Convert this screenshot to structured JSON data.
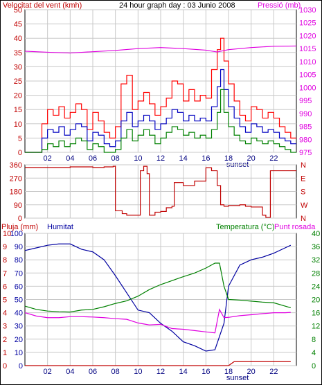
{
  "header": {
    "left": "Velocitat del vent (kmh)",
    "center": "24 hour graph day : 03 Junio 2008",
    "right": "Pressió (mb)"
  },
  "bottom_header": {
    "rain": "Pluja (mm)",
    "humidity": "Humitat",
    "temperature": "Temperatura (°C)",
    "dew": "Punt rosada"
  },
  "colors": {
    "wind_gust": "#ff0000",
    "wind_avg": "#0000c0",
    "wind_low": "#008000",
    "pressure": "#e000e0",
    "direction": "#c00000",
    "humidity": "#0000a0",
    "temperature": "#008000",
    "dew": "#e000e0",
    "rain": "#c00000",
    "grid": "#c8c8c8"
  },
  "x_ticks": [
    "02",
    "04",
    "06",
    "08",
    "10",
    "12",
    "14",
    "16",
    "18",
    "20",
    "22"
  ],
  "sunset_label": "sunset",
  "chart_data": [
    {
      "type": "line",
      "panel": "wind-pressure",
      "x_label_hours": [
        2,
        4,
        6,
        8,
        10,
        12,
        14,
        16,
        18,
        20,
        22
      ],
      "y_left": {
        "label": "Velocitat del vent (kmh)",
        "ticks": [
          0,
          5,
          10,
          15,
          20,
          25,
          30,
          35,
          40,
          45,
          50
        ],
        "ylim": [
          0,
          50
        ]
      },
      "y_right": {
        "label": "Pressió (mb)",
        "ticks": [
          975,
          980,
          985,
          990,
          995,
          1000,
          1005,
          1010,
          1015,
          1020,
          1025,
          1030
        ],
        "ylim": [
          975,
          1030
        ]
      },
      "series": [
        {
          "name": "gust",
          "axis": "left",
          "x": [
            0,
            1,
            1.5,
            2,
            2.5,
            3,
            3.5,
            4,
            4.5,
            5,
            5.5,
            6,
            6.5,
            7,
            7.5,
            8,
            8.5,
            9,
            9.5,
            10,
            10.5,
            11,
            11.5,
            12,
            12.5,
            13,
            13.5,
            14,
            14.5,
            15,
            15.5,
            16,
            16.5,
            17,
            17.3,
            17.6,
            18,
            18.5,
            19,
            19.5,
            20,
            20.5,
            21,
            21.5,
            22,
            22.5,
            23,
            23.5
          ],
          "values": [
            0,
            0,
            10,
            15,
            13,
            16,
            12,
            14,
            17,
            15,
            8,
            14,
            11,
            7,
            5,
            9,
            24,
            27,
            15,
            18,
            21,
            17,
            13,
            16,
            19,
            25,
            24,
            18,
            22,
            18,
            20,
            19,
            29,
            36,
            40,
            32,
            24,
            18,
            13,
            11,
            16,
            15,
            12,
            14,
            12,
            9,
            7,
            5
          ]
        },
        {
          "name": "average",
          "axis": "left",
          "x": [
            0,
            1,
            1.5,
            2,
            2.5,
            3,
            3.5,
            4,
            4.5,
            5,
            5.5,
            6,
            6.5,
            7,
            7.5,
            8,
            8.5,
            9,
            9.5,
            10,
            10.5,
            11,
            11.5,
            12,
            12.5,
            13,
            13.5,
            14,
            14.5,
            15,
            15.5,
            16,
            16.5,
            17,
            17.3,
            17.6,
            18,
            18.5,
            19,
            19.5,
            20,
            20.5,
            21,
            21.5,
            22,
            22.5,
            23,
            23.5
          ],
          "values": [
            0,
            0,
            5,
            8,
            7,
            9,
            6,
            8,
            10,
            9,
            4,
            7,
            6,
            3,
            2,
            4,
            11,
            14,
            9,
            11,
            13,
            11,
            8,
            10,
            12,
            15,
            14,
            11,
            13,
            11,
            12,
            11,
            16,
            23,
            29,
            22,
            16,
            12,
            9,
            7,
            10,
            9,
            7,
            8,
            7,
            5,
            4,
            3
          ]
        },
        {
          "name": "minimum",
          "axis": "left",
          "x": [
            0,
            1,
            1.5,
            2,
            2.5,
            3,
            3.5,
            4,
            4.5,
            5,
            5.5,
            6,
            6.5,
            7,
            7.5,
            8,
            8.5,
            9,
            9.5,
            10,
            10.5,
            11,
            11.5,
            12,
            12.5,
            13,
            13.5,
            14,
            14.5,
            15,
            15.5,
            16,
            16.5,
            17,
            17.3,
            17.6,
            18,
            18.5,
            19,
            19.5,
            20,
            20.5,
            21,
            21.5,
            22,
            22.5,
            23,
            23.5
          ],
          "values": [
            0,
            0,
            1,
            3,
            2,
            4,
            2,
            3,
            5,
            4,
            1,
            3,
            2,
            0,
            0,
            1,
            5,
            8,
            4,
            6,
            8,
            6,
            3,
            5,
            7,
            9,
            8,
            6,
            7,
            5,
            6,
            5,
            8,
            14,
            22,
            14,
            9,
            6,
            4,
            3,
            5,
            4,
            3,
            4,
            3,
            2,
            1,
            0
          ]
        },
        {
          "name": "pressure",
          "axis": "right",
          "x": [
            0,
            2,
            4,
            6,
            8,
            10,
            12,
            14,
            16,
            17,
            18,
            20,
            22,
            24
          ],
          "values": [
            1014.0,
            1013.6,
            1013.3,
            1013.8,
            1014.3,
            1015.0,
            1015.4,
            1015.0,
            1014.4,
            1013.7,
            1014.6,
            1015.4,
            1015.9,
            1016.0
          ]
        }
      ]
    },
    {
      "type": "line",
      "panel": "wind-direction",
      "y_left": {
        "ticks": [
          0,
          90,
          180,
          270,
          360
        ],
        "ylim": [
          0,
          360
        ]
      },
      "y_right": {
        "ticks": [
          "N",
          "W",
          "S",
          "E",
          "N"
        ]
      },
      "series": [
        {
          "name": "direction",
          "x": [
            0,
            2,
            4,
            6,
            7,
            7.8,
            8,
            8.6,
            9,
            10,
            10.2,
            10.5,
            10.8,
            11,
            11.5,
            12,
            12.5,
            13,
            13.2,
            14,
            15,
            16,
            16.5,
            17,
            17.3,
            17.6,
            18,
            19,
            19.5,
            20,
            21,
            21.3,
            21.7,
            22,
            23,
            23.5
          ],
          "values": [
            342,
            342,
            346,
            342,
            346,
            350,
            50,
            30,
            20,
            20,
            320,
            350,
            300,
            20,
            40,
            45,
            70,
            80,
            240,
            220,
            250,
            340,
            320,
            220,
            90,
            80,
            85,
            90,
            80,
            75,
            20,
            5,
            320,
            320,
            320,
            320
          ]
        }
      ]
    },
    {
      "type": "line",
      "panel": "rain-humidity-temperature",
      "y_rain": {
        "label": "Pluja (mm)",
        "ticks": [
          0,
          1,
          2,
          3,
          4,
          5,
          6,
          7,
          8,
          9,
          10
        ],
        "ylim": [
          0,
          10
        ]
      },
      "y_humidity": {
        "label": "Humitat",
        "ticks": [
          0,
          10,
          20,
          30,
          40,
          50,
          60,
          70,
          80,
          90,
          100
        ],
        "ylim": [
          0,
          100
        ]
      },
      "y_temp": {
        "label": "Temperatura (°C)",
        "ticks": [
          0,
          4,
          8,
          12,
          16,
          20,
          24,
          28,
          32,
          36,
          40
        ],
        "ylim": [
          0,
          40
        ]
      },
      "series": [
        {
          "name": "humidity",
          "axis": "humidity",
          "x": [
            0,
            1,
            2,
            3,
            4,
            5,
            6,
            7,
            8,
            9,
            10,
            11,
            12,
            13,
            14,
            15,
            16,
            16.8,
            17.2,
            17.6,
            18,
            19,
            20,
            21,
            22,
            23,
            23.5
          ],
          "values": [
            87,
            89,
            91,
            92,
            92,
            88,
            86,
            80,
            68,
            55,
            42,
            40,
            32,
            26,
            18,
            15,
            11,
            12,
            22,
            32,
            60,
            76,
            80,
            82,
            85,
            89,
            91
          ]
        },
        {
          "name": "temperature",
          "axis": "temp",
          "x": [
            0,
            1,
            2,
            3,
            4,
            5,
            6,
            7,
            8,
            9,
            10,
            11,
            12,
            13,
            14,
            15,
            16,
            16.8,
            17.2,
            17.6,
            18,
            19,
            20,
            21,
            22,
            23,
            23.5
          ],
          "values": [
            18,
            17,
            16.5,
            16.3,
            16.2,
            16.8,
            17,
            17.8,
            18.8,
            19.6,
            21,
            23,
            24.5,
            25.7,
            26.9,
            28,
            29.5,
            31,
            31,
            24,
            20,
            19.8,
            19.5,
            19.2,
            19,
            18,
            17.5
          ]
        },
        {
          "name": "dew point",
          "axis": "temp",
          "x": [
            0,
            1,
            2,
            3,
            4,
            5,
            6,
            7,
            8,
            9,
            10,
            11,
            12,
            13,
            14,
            15,
            16,
            16.8,
            17.2,
            17.6,
            18,
            19,
            20,
            21,
            22,
            23,
            23.5
          ],
          "values": [
            16,
            15,
            14.5,
            14.5,
            14.8,
            14.8,
            14.7,
            14.5,
            14.2,
            14,
            12.9,
            12.3,
            12.5,
            11.2,
            11,
            10.6,
            10.2,
            9.9,
            17,
            14.5,
            14.6,
            15.1,
            15.4,
            15.7,
            16,
            16,
            16.1
          ]
        },
        {
          "name": "rain",
          "axis": "rain",
          "x": [
            0,
            18,
            18.5,
            23.5
          ],
          "values": [
            0,
            0,
            0.3,
            0.3
          ]
        }
      ]
    }
  ]
}
